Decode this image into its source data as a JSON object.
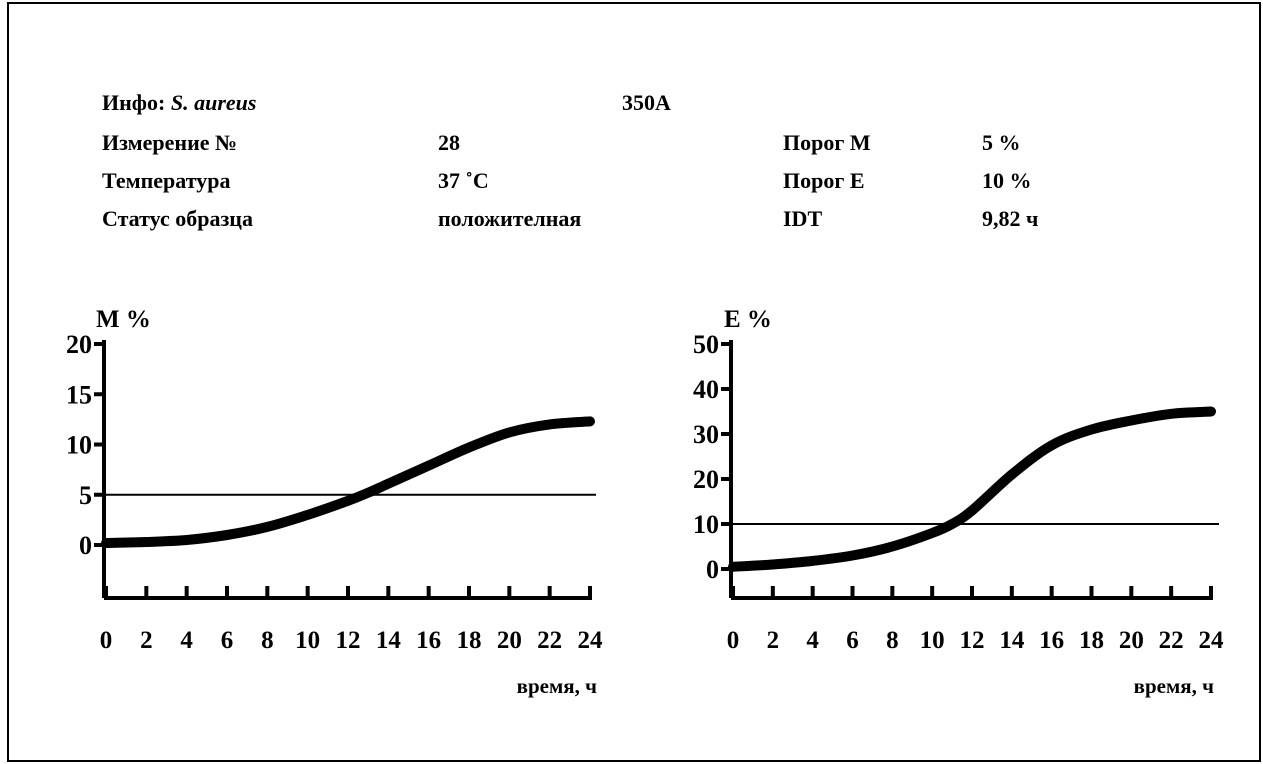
{
  "info": {
    "info_label": "Инфо:",
    "species": "S. aureus",
    "strain": "350A",
    "measurement_label": "Измерение №",
    "measurement_value": "28",
    "temperature_label": "Температура",
    "temperature_value": "37 ˚C",
    "status_label": "Статус образца",
    "status_value": "положителная",
    "threshold_m_label": "Порог М",
    "threshold_m_value": "5 %",
    "threshold_e_label": "Порог Е",
    "threshold_e_value": "10 %",
    "idt_label": "IDT",
    "idt_value": "9,82 ч"
  },
  "chart_data": [
    {
      "type": "line",
      "ylabel": "М %",
      "xlabel": "время, ч",
      "xlim": [
        0,
        24
      ],
      "ylim": [
        0,
        20
      ],
      "xticks": [
        0,
        2,
        4,
        6,
        8,
        10,
        12,
        14,
        16,
        18,
        20,
        22,
        24
      ],
      "yticks": [
        0,
        5,
        10,
        15,
        20
      ],
      "threshold": 5,
      "series": [
        {
          "x": [
            0,
            2,
            4,
            6,
            8,
            10,
            12,
            13,
            14,
            16,
            18,
            20,
            22,
            24
          ],
          "y": [
            0.2,
            0.3,
            0.5,
            1.0,
            1.8,
            3.0,
            4.4,
            5.2,
            6.1,
            7.9,
            9.7,
            11.2,
            12.0,
            12.3
          ]
        }
      ]
    },
    {
      "type": "line",
      "ylabel": "Е %",
      "xlabel": "время, ч",
      "xlim": [
        0,
        24
      ],
      "ylim": [
        0,
        50
      ],
      "xticks": [
        0,
        2,
        4,
        6,
        8,
        10,
        12,
        14,
        16,
        18,
        20,
        22,
        24
      ],
      "yticks": [
        0,
        10,
        20,
        30,
        40,
        50
      ],
      "threshold": 10,
      "series": [
        {
          "x": [
            0,
            2,
            4,
            6,
            8,
            10,
            11,
            12,
            14,
            16,
            18,
            20,
            22,
            24
          ],
          "y": [
            0.5,
            1.0,
            1.8,
            3.0,
            5.0,
            8.0,
            10.0,
            13.0,
            21.0,
            27.5,
            31.0,
            33.0,
            34.5,
            35.0
          ]
        }
      ]
    }
  ]
}
